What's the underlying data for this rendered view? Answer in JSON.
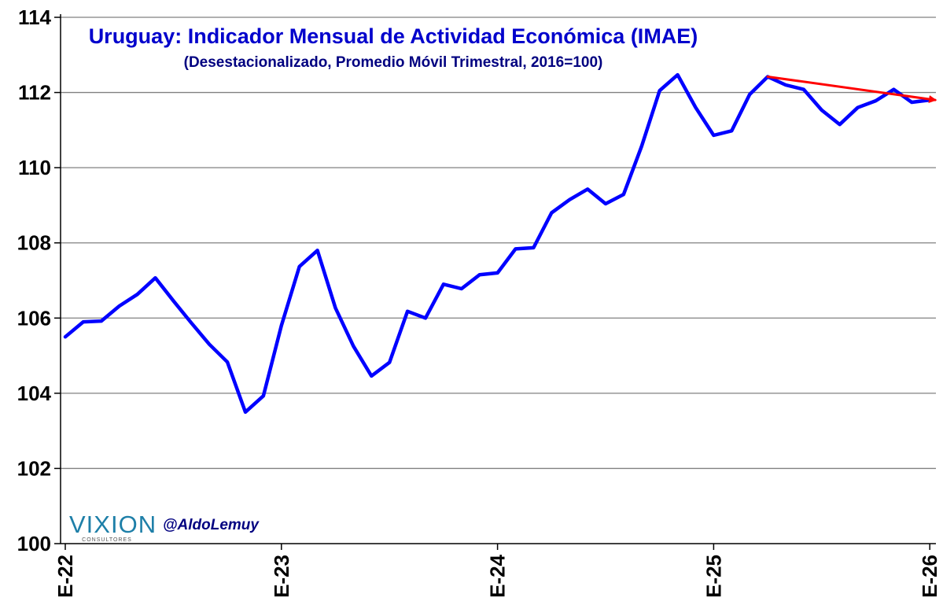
{
  "chart_data": {
    "type": "line",
    "title": "Uruguay: Indicador Mensual de Actividad Económica (IMAE)",
    "subtitle": "(Desestacionalizado, Promedio Móvil Trimestral, 2016=100)",
    "ylim": [
      100,
      114
    ],
    "yticks": [
      100,
      102,
      104,
      106,
      108,
      110,
      112,
      114
    ],
    "ytick_labels": [
      "100",
      "102",
      "104",
      "106",
      "108",
      "110",
      "112",
      "114"
    ],
    "xlim": [
      0,
      48.3
    ],
    "xticks": [
      0,
      12,
      24,
      36,
      48
    ],
    "xtick_labels": [
      "E-22",
      "E-23",
      "E-24",
      "E-25",
      "E-26"
    ],
    "grid": true,
    "series": [
      {
        "name": "IMAE",
        "color": "#0000ff",
        "x": [
          0,
          1,
          2,
          3,
          4,
          5,
          6,
          7,
          8,
          9,
          10,
          11,
          12,
          13,
          14,
          15,
          16,
          17,
          18,
          19,
          20,
          21,
          22,
          23,
          24,
          25,
          26,
          27,
          28,
          29,
          30,
          31,
          32,
          33,
          34,
          35,
          36,
          37,
          38,
          39,
          40,
          41,
          42,
          43,
          44,
          45,
          46,
          47,
          48
        ],
        "values": [
          105.5,
          105.9,
          105.92,
          106.32,
          106.63,
          107.07,
          106.46,
          105.87,
          105.3,
          104.83,
          103.5,
          103.93,
          105.8,
          107.37,
          107.8,
          106.27,
          105.25,
          104.46,
          104.82,
          106.18,
          106.0,
          106.9,
          106.78,
          107.15,
          107.2,
          107.84,
          107.87,
          108.8,
          109.15,
          109.43,
          109.04,
          109.29,
          110.57,
          112.05,
          112.47,
          111.6,
          110.86,
          110.98,
          111.95,
          112.42,
          112.2,
          112.08,
          111.53,
          111.15,
          111.6,
          111.78,
          112.08,
          111.74,
          111.8
        ]
      },
      {
        "name": "Tendencia",
        "color": "#ff0000",
        "x": [
          39,
          48.3
        ],
        "values": [
          112.42,
          111.8
        ],
        "arrow": true
      }
    ]
  },
  "branding": {
    "logo": "VIXION",
    "logo_sub": "CONSULTORES",
    "handle": "@AldoLemuy"
  },
  "colors": {
    "title": "#0000cc",
    "subtitle": "#000080",
    "axis": "#000000",
    "grid": "#808080"
  }
}
